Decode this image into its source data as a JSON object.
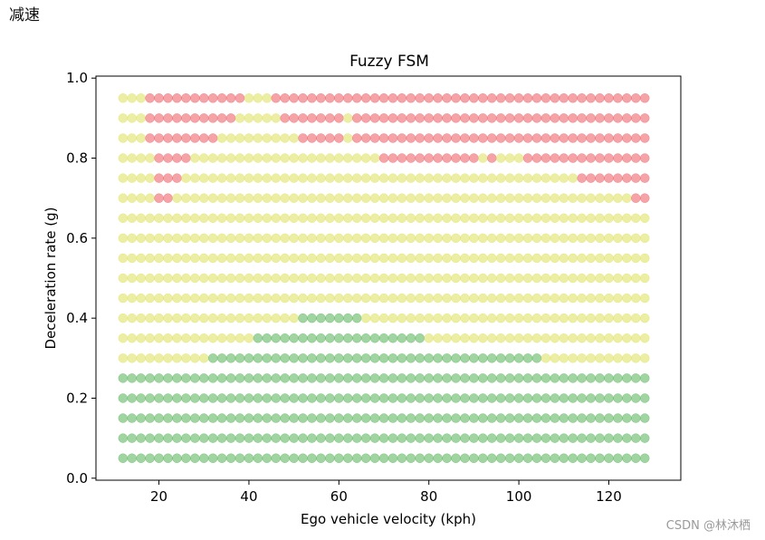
{
  "heading": "减速",
  "watermark": "CSDN @林沐栖",
  "chart_data": {
    "type": "scatter",
    "title": "Fuzzy FSM",
    "xlabel": "Ego vehicle velocity (kph)",
    "ylabel": "Deceleration rate (g)",
    "xlim": [
      6,
      136
    ],
    "ylim": [
      -0.005,
      1.005
    ],
    "xticks": [
      20,
      40,
      60,
      80,
      100,
      120
    ],
    "yticks": [
      0.0,
      0.2,
      0.4,
      0.6,
      0.8,
      1.0
    ],
    "ytick_labels": [
      "0.0",
      "0.2",
      "0.4",
      "0.6",
      "0.8",
      "1.0"
    ],
    "grid": false,
    "marker_alpha": 0.45,
    "colors": {
      "Y": "#d4d934",
      "R": "#e8323c",
      "G": "#2ca02c"
    },
    "x_values": {
      "start": 12,
      "stop": 128,
      "step": 2
    },
    "rows": [
      {
        "y": 0.95,
        "segments": [
          [
            "Y",
            12,
            16
          ],
          [
            "R",
            18,
            38
          ],
          [
            "Y",
            40,
            44
          ],
          [
            "R",
            46,
            128
          ]
        ]
      },
      {
        "y": 0.9,
        "segments": [
          [
            "Y",
            12,
            16
          ],
          [
            "R",
            18,
            36
          ],
          [
            "Y",
            38,
            46
          ],
          [
            "R",
            48,
            60
          ],
          [
            "Y",
            62,
            62
          ],
          [
            "R",
            64,
            128
          ]
        ]
      },
      {
        "y": 0.85,
        "segments": [
          [
            "Y",
            12,
            16
          ],
          [
            "R",
            18,
            32
          ],
          [
            "Y",
            34,
            50
          ],
          [
            "R",
            52,
            60
          ],
          [
            "Y",
            62,
            62
          ],
          [
            "R",
            64,
            128
          ]
        ]
      },
      {
        "y": 0.8,
        "segments": [
          [
            "Y",
            12,
            18
          ],
          [
            "R",
            20,
            26
          ],
          [
            "Y",
            28,
            68
          ],
          [
            "R",
            70,
            90
          ],
          [
            "Y",
            92,
            92
          ],
          [
            "R",
            94,
            94
          ],
          [
            "Y",
            96,
            100
          ],
          [
            "R",
            102,
            128
          ]
        ]
      },
      {
        "y": 0.75,
        "segments": [
          [
            "Y",
            12,
            18
          ],
          [
            "R",
            20,
            24
          ],
          [
            "Y",
            26,
            112
          ],
          [
            "R",
            114,
            128
          ]
        ]
      },
      {
        "y": 0.7,
        "segments": [
          [
            "Y",
            12,
            18
          ],
          [
            "R",
            20,
            22
          ],
          [
            "Y",
            24,
            124
          ],
          [
            "R",
            126,
            128
          ]
        ]
      },
      {
        "y": 0.65,
        "segments": [
          [
            "Y",
            12,
            128
          ]
        ]
      },
      {
        "y": 0.6,
        "segments": [
          [
            "Y",
            12,
            128
          ]
        ]
      },
      {
        "y": 0.55,
        "segments": [
          [
            "Y",
            12,
            128
          ]
        ]
      },
      {
        "y": 0.5,
        "segments": [
          [
            "Y",
            12,
            128
          ]
        ]
      },
      {
        "y": 0.45,
        "segments": [
          [
            "Y",
            12,
            128
          ]
        ]
      },
      {
        "y": 0.4,
        "segments": [
          [
            "Y",
            12,
            50
          ],
          [
            "G",
            52,
            64
          ],
          [
            "Y",
            66,
            128
          ]
        ]
      },
      {
        "y": 0.35,
        "segments": [
          [
            "Y",
            12,
            40
          ],
          [
            "G",
            42,
            78
          ],
          [
            "Y",
            80,
            128
          ]
        ]
      },
      {
        "y": 0.3,
        "segments": [
          [
            "Y",
            12,
            30
          ],
          [
            "G",
            32,
            104
          ],
          [
            "Y",
            106,
            128
          ]
        ]
      },
      {
        "y": 0.25,
        "segments": [
          [
            "G",
            12,
            128
          ]
        ]
      },
      {
        "y": 0.2,
        "segments": [
          [
            "G",
            12,
            128
          ]
        ]
      },
      {
        "y": 0.15,
        "segments": [
          [
            "G",
            12,
            128
          ]
        ]
      },
      {
        "y": 0.1,
        "segments": [
          [
            "G",
            12,
            128
          ]
        ]
      },
      {
        "y": 0.05,
        "segments": [
          [
            "G",
            12,
            128
          ]
        ]
      }
    ]
  }
}
